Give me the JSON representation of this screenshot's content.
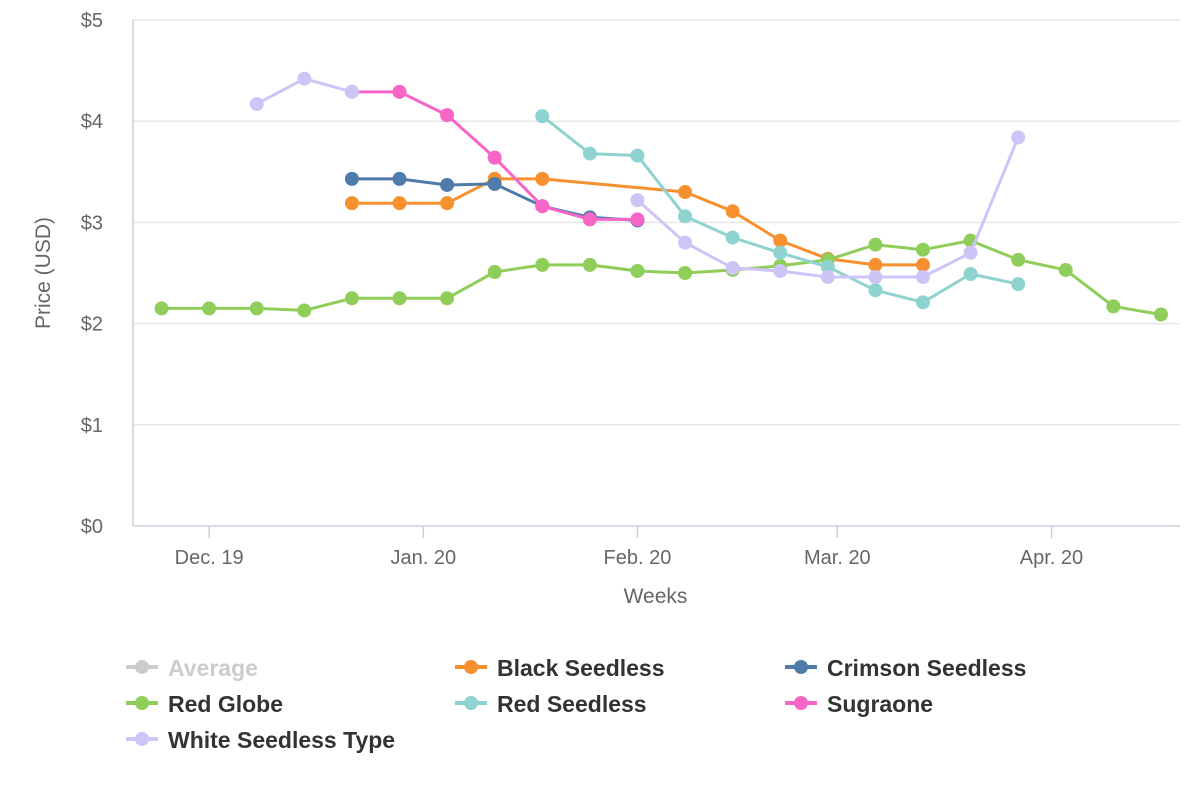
{
  "chart_data": {
    "type": "line",
    "title": "",
    "xlabel": "Weeks",
    "ylabel": "Price (USD)",
    "y_ticks": [
      {
        "value": 0,
        "label": "$0"
      },
      {
        "value": 1,
        "label": "$1"
      },
      {
        "value": 2,
        "label": "$2"
      },
      {
        "value": 3,
        "label": "$3"
      },
      {
        "value": 4,
        "label": "$4"
      },
      {
        "value": 5,
        "label": "$5"
      }
    ],
    "ylim": [
      0,
      5
    ],
    "xlim": [
      -0.6,
      21.4
    ],
    "x_ticks": [
      {
        "value": 1,
        "label": "Dec. 19"
      },
      {
        "value": 5.5,
        "label": "Jan. 20"
      },
      {
        "value": 10,
        "label": "Feb. 20"
      },
      {
        "value": 14.2,
        "label": "Mar. 20"
      },
      {
        "value": 18.7,
        "label": "Apr. 20"
      }
    ],
    "grid": true,
    "legend_position": "bottom",
    "series": [
      {
        "name": "Average",
        "color": "#cccccc",
        "visible": false,
        "points": []
      },
      {
        "name": "Black Seedless",
        "color": "#f7912f",
        "visible": true,
        "points": [
          [
            4,
            3.19
          ],
          [
            5,
            3.19
          ],
          [
            6,
            3.19
          ],
          [
            7,
            3.43
          ],
          [
            8,
            3.43
          ],
          [
            11,
            3.3
          ],
          [
            12,
            3.11
          ],
          [
            13,
            2.82
          ],
          [
            14,
            2.64
          ],
          [
            15,
            2.58
          ],
          [
            16,
            2.58
          ]
        ]
      },
      {
        "name": "Crimson Seedless",
        "color": "#4f7bab",
        "visible": true,
        "points": [
          [
            4,
            3.43
          ],
          [
            5,
            3.43
          ],
          [
            6,
            3.37
          ],
          [
            7,
            3.38
          ],
          [
            8,
            3.16
          ],
          [
            9,
            3.05
          ],
          [
            10,
            3.02
          ]
        ]
      },
      {
        "name": "Red Globe",
        "color": "#8fce5a",
        "visible": true,
        "points": [
          [
            0,
            2.15
          ],
          [
            1,
            2.15
          ],
          [
            2,
            2.15
          ],
          [
            3,
            2.13
          ],
          [
            4,
            2.25
          ],
          [
            5,
            2.25
          ],
          [
            6,
            2.25
          ],
          [
            7,
            2.51
          ],
          [
            8,
            2.58
          ],
          [
            9,
            2.58
          ],
          [
            10,
            2.52
          ],
          [
            11,
            2.5
          ],
          [
            12,
            2.53
          ],
          [
            13,
            2.57
          ],
          [
            14,
            2.63
          ],
          [
            15,
            2.78
          ],
          [
            16,
            2.73
          ],
          [
            17,
            2.82
          ],
          [
            18,
            2.63
          ],
          [
            19,
            2.53
          ],
          [
            20,
            2.17
          ],
          [
            21,
            2.09
          ]
        ]
      },
      {
        "name": "Red Seedless",
        "color": "#8fd3d1",
        "visible": true,
        "points": [
          [
            8,
            4.05
          ],
          [
            9,
            3.68
          ],
          [
            10,
            3.66
          ],
          [
            11,
            3.06
          ],
          [
            12,
            2.85
          ],
          [
            13,
            2.7
          ],
          [
            14,
            2.56
          ],
          [
            15,
            2.33
          ],
          [
            16,
            2.21
          ],
          [
            17,
            2.49
          ],
          [
            18,
            2.39
          ]
        ]
      },
      {
        "name": "Sugraone",
        "color": "#f766c6",
        "visible": true,
        "points": [
          [
            4,
            4.29
          ],
          [
            5,
            4.29
          ],
          [
            6,
            4.06
          ],
          [
            7,
            3.64
          ],
          [
            8,
            3.16
          ],
          [
            9,
            3.03
          ],
          [
            10,
            3.03
          ]
        ]
      },
      {
        "name": "White Seedless Type",
        "color": "#cfc4f7",
        "visible": true,
        "points": [
          [
            2,
            4.17
          ],
          [
            3,
            4.42
          ],
          [
            4,
            4.29
          ],
          [
            10,
            3.22
          ],
          [
            11,
            2.8
          ],
          [
            12,
            2.55
          ],
          [
            13,
            2.52
          ],
          [
            14,
            2.46
          ],
          [
            15,
            2.46
          ],
          [
            16,
            2.46
          ],
          [
            17,
            2.7
          ],
          [
            18,
            3.84
          ]
        ],
        "breaks_after": [
          4
        ]
      }
    ]
  }
}
